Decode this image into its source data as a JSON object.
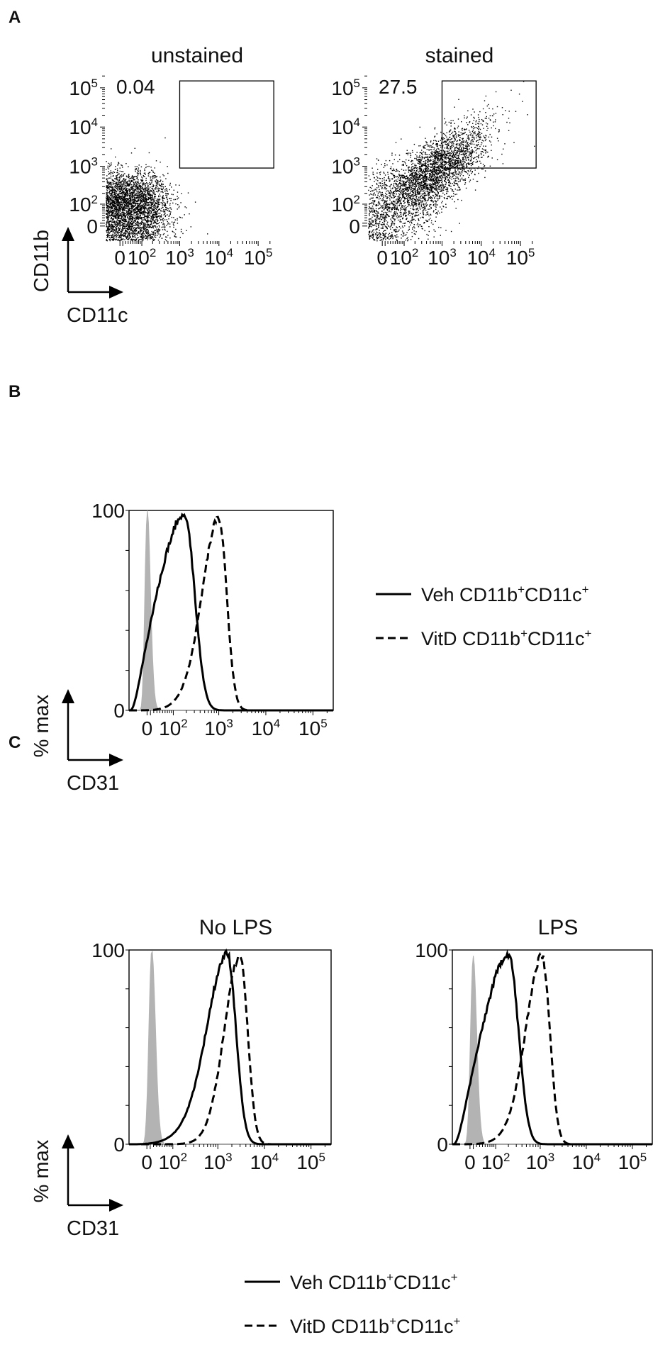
{
  "figure": {
    "panel_letters": [
      "A",
      "B",
      "C"
    ]
  },
  "chart_data": [
    {
      "panel": "A",
      "type": "scatter",
      "title": "unstained",
      "xlabel": "CD11c",
      "ylabel": "CD11b",
      "x_scale": "biexponential",
      "y_scale": "biexponential",
      "x_ticks": [
        "0",
        "10^2",
        "10^3",
        "10^4",
        "10^5"
      ],
      "y_ticks": [
        "0",
        "10^2",
        "10^3",
        "10^4",
        "10^5"
      ],
      "gate": {
        "x_range": [
          1000,
          250000
        ],
        "y_range": [
          900,
          150000
        ],
        "percent": "0.04"
      },
      "population": {
        "center": [
          80,
          130
        ],
        "spread": "compact",
        "count_approx": 6000
      }
    },
    {
      "panel": "A",
      "type": "scatter",
      "title": "stained",
      "xlabel": "CD11c",
      "ylabel": "CD11b",
      "x_scale": "biexponential",
      "y_scale": "biexponential",
      "x_ticks": [
        "0",
        "10^2",
        "10^3",
        "10^4",
        "10^5"
      ],
      "y_ticks": [
        "0",
        "10^2",
        "10^3",
        "10^4",
        "10^5"
      ],
      "gate": {
        "x_range": [
          1000,
          250000
        ],
        "y_range": [
          900,
          150000
        ],
        "percent": "27.5"
      },
      "population": {
        "center": [
          400,
          500
        ],
        "spread": "diagonal",
        "count_approx": 6000
      }
    },
    {
      "panel": "B",
      "type": "line",
      "xlabel": "CD31",
      "ylabel": "% max",
      "x_scale": "biexponential",
      "x_ticks": [
        "0",
        "10^2",
        "10^3",
        "10^4",
        "10^5"
      ],
      "y_ticks": [
        "0",
        "100"
      ],
      "ylim": [
        0,
        100
      ],
      "series": [
        {
          "name": "",
          "style": "filled-gray",
          "peak_x": 0,
          "peak_y": 100
        },
        {
          "name": "Veh CD11b+CD11c+",
          "style": "solid",
          "peak_x": 180,
          "peak_y": 98
        },
        {
          "name": "VitD CD11b+CD11c+",
          "style": "dashed",
          "peak_x": 1000,
          "peak_y": 96
        }
      ]
    },
    {
      "panel": "C",
      "type": "line",
      "title": "No LPS",
      "xlabel": "CD31",
      "ylabel": "% max",
      "x_scale": "biexponential",
      "x_ticks": [
        "0",
        "10^2",
        "10^3",
        "10^4",
        "10^5"
      ],
      "y_ticks": [
        "0",
        "100"
      ],
      "ylim": [
        0,
        100
      ],
      "series": [
        {
          "name": "",
          "style": "filled-gray",
          "peak_x": 15,
          "peak_y": 100
        },
        {
          "name": "Veh CD11b+CD11c+",
          "style": "solid",
          "peak_x": 1600,
          "peak_y": 98
        },
        {
          "name": "VitD CD11b+CD11c+",
          "style": "dashed",
          "peak_x": 3000,
          "peak_y": 97
        }
      ]
    },
    {
      "panel": "C",
      "type": "line",
      "title": "LPS",
      "xlabel": "",
      "ylabel": "",
      "x_scale": "biexponential",
      "x_ticks": [
        "0",
        "10^2",
        "10^3",
        "10^4",
        "10^5"
      ],
      "y_ticks": [
        "0",
        "100"
      ],
      "ylim": [
        0,
        100
      ],
      "series": [
        {
          "name": "",
          "style": "filled-gray",
          "peak_x": 10,
          "peak_y": 97
        },
        {
          "name": "Veh CD11b+CD11c+",
          "style": "solid",
          "peak_x": 200,
          "peak_y": 98
        },
        {
          "name": "VitD CD11b+CD11c+",
          "style": "dashed",
          "peak_x": 1100,
          "peak_y": 97
        }
      ]
    }
  ],
  "axis_labels": {
    "a_y": "CD11b",
    "a_x": "CD11c",
    "b_y": "% max",
    "b_x": "CD31",
    "c_y": "% max",
    "c_x": "CD31"
  },
  "legend": {
    "veh": {
      "name": "Veh",
      "base1": "CD11b",
      "sup1": "+",
      "base2": "CD11c",
      "sup2": "+"
    },
    "vitd": {
      "name": "VitD",
      "base1": "CD11b",
      "sup1": "+",
      "base2": "CD11c",
      "sup2": "+"
    }
  }
}
